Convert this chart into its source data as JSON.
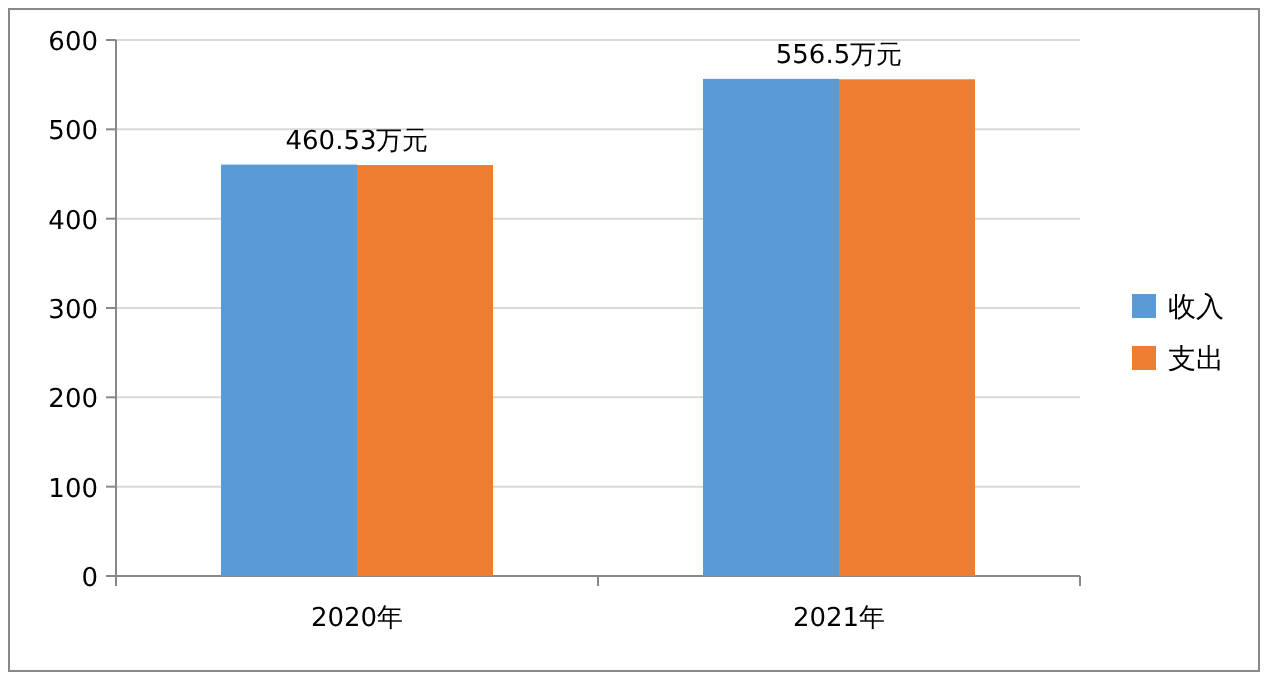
{
  "chart_data": {
    "type": "bar",
    "categories": [
      "2020年",
      "2021年"
    ],
    "series": [
      {
        "name": "收入",
        "color": "#5b9bd5",
        "values": [
          460.53,
          556.5
        ]
      },
      {
        "name": "支出",
        "color": "#ed7d31",
        "values": [
          460,
          556
        ]
      }
    ],
    "ylim": [
      0,
      600
    ],
    "yticks": [
      0,
      100,
      200,
      300,
      400,
      500,
      600
    ],
    "grid": "y",
    "legend": "right",
    "annotations": [
      {
        "text": "460.53万元",
        "x": "2020年",
        "y": 460.53
      },
      {
        "text": "556.5万元",
        "x": "2021年",
        "y": 556.5
      }
    ]
  }
}
